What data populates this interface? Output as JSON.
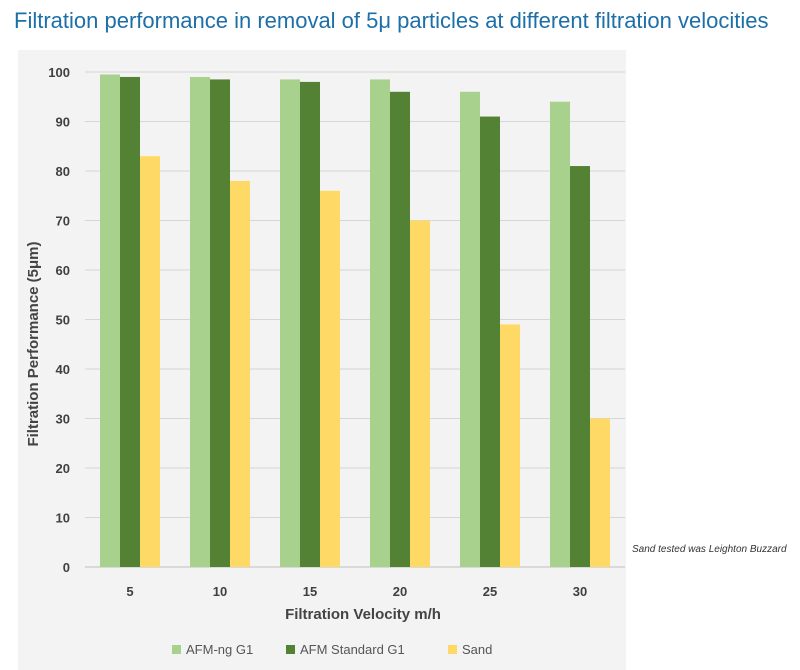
{
  "header": {
    "title": "Filtration performance in removal of 5μ particles at different filtration velocities"
  },
  "note": "Sand tested was Leighton Buzzard",
  "chart_data": {
    "type": "bar",
    "title": "Filtration performance in removal of 5μ particles at different filtration velocities",
    "xlabel": "Filtration Velocity  m/h",
    "ylabel": "Filtration Performance (5μm)",
    "ylim": [
      0,
      100
    ],
    "yticks": [
      0,
      10,
      20,
      30,
      40,
      50,
      60,
      70,
      80,
      90,
      100
    ],
    "categories": [
      "5",
      "10",
      "15",
      "20",
      "25",
      "30"
    ],
    "grid": true,
    "legend_position": "bottom",
    "series": [
      {
        "name": "AFM-ng G1",
        "color": "#a9d18e",
        "values": [
          99.5,
          99,
          98.5,
          98.5,
          96,
          94
        ]
      },
      {
        "name": "AFM Standard G1",
        "color": "#548235",
        "values": [
          99,
          98.5,
          98,
          96,
          91,
          81
        ]
      },
      {
        "name": "Sand",
        "color": "#ffd966",
        "values": [
          83,
          78,
          76,
          70,
          49,
          30
        ]
      }
    ]
  }
}
